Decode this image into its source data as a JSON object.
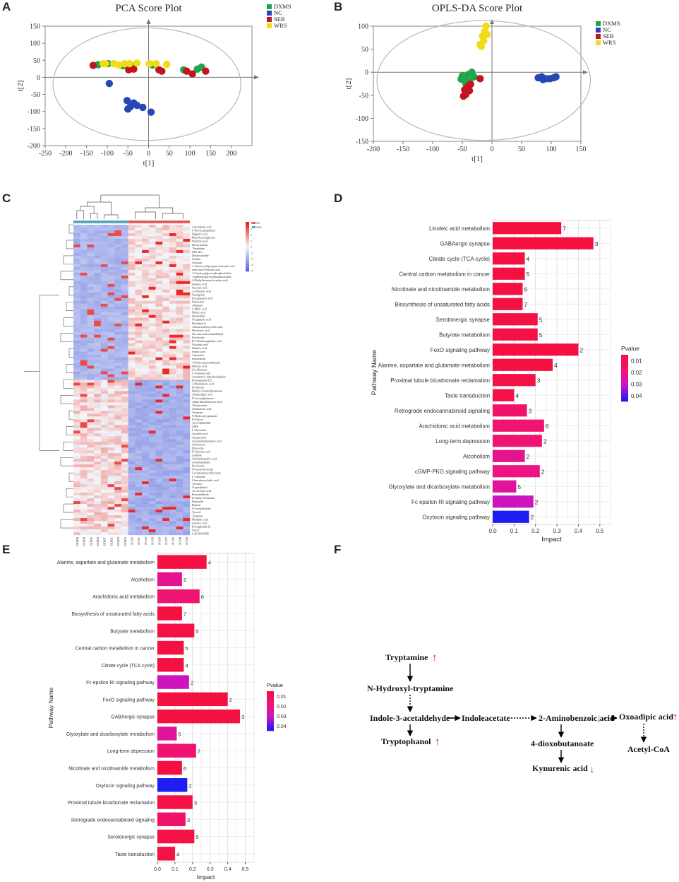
{
  "panels": {
    "a": "A",
    "b": "B",
    "c": "C",
    "d": "D",
    "e": "E",
    "f": "F"
  },
  "colors": {
    "DXMS": "#1fa64a",
    "NC": "#2747b5",
    "SEB": "#c4141b",
    "WRS": "#f2dc17"
  },
  "chart_data": [
    {
      "id": "pca",
      "type": "scatter",
      "title": "PCA Score Plot",
      "xlabel": "t[1]",
      "ylabel": "t[2]",
      "xlim": [
        -250,
        250
      ],
      "ylim": [
        -200,
        150
      ],
      "xticks": [
        -250,
        -200,
        -150,
        -100,
        -50,
        0,
        50,
        100,
        150,
        200
      ],
      "yticks": [
        -200,
        -150,
        -100,
        -50,
        0,
        50,
        100,
        150
      ],
      "ellipse": {
        "cx": -4,
        "cy": -20,
        "rx": 227,
        "ry": 165
      },
      "legend": [
        "DXMS",
        "NC",
        "SEB",
        "WRS"
      ],
      "series": [
        {
          "name": "DXMS",
          "points": [
            [
              -122,
              37
            ],
            [
              -98,
              40
            ],
            [
              -62,
              34
            ],
            [
              -38,
              34
            ],
            [
              10,
              36
            ],
            [
              85,
              22
            ],
            [
              118,
              24
            ],
            [
              128,
              30
            ]
          ]
        },
        {
          "name": "NC",
          "points": [
            [
              -95,
              -18
            ],
            [
              -52,
              -68
            ],
            [
              -44,
              -86
            ],
            [
              -36,
              -75
            ],
            [
              -28,
              -82
            ],
            [
              -14,
              -88
            ],
            [
              6,
              -102
            ],
            [
              -50,
              -93
            ]
          ]
        },
        {
          "name": "SEB",
          "points": [
            [
              -134,
              35
            ],
            [
              -48,
              22
            ],
            [
              -36,
              24
            ],
            [
              25,
              22
            ],
            [
              32,
              18
            ],
            [
              92,
              18
            ],
            [
              106,
              10
            ],
            [
              138,
              18
            ]
          ]
        },
        {
          "name": "WRS",
          "points": [
            [
              -110,
              40
            ],
            [
              -104,
              40
            ],
            [
              -84,
              40
            ],
            [
              -72,
              36
            ],
            [
              -58,
              40
            ],
            [
              -46,
              40
            ],
            [
              -28,
              42
            ],
            [
              2,
              40
            ],
            [
              18,
              40
            ],
            [
              44,
              38
            ]
          ]
        }
      ]
    },
    {
      "id": "oplsda",
      "type": "scatter",
      "title": "OPLS-DA Score Plot",
      "xlabel": "t[1]",
      "ylabel": "t[2]",
      "xlim": [
        -200,
        150
      ],
      "ylim": [
        -150,
        100
      ],
      "xticks": [
        -200,
        -150,
        -100,
        -50,
        0,
        50,
        100,
        150
      ],
      "yticks": [
        -150,
        -100,
        -50,
        0,
        50,
        100
      ],
      "ellipse": {
        "cx": -14,
        "cy": -18,
        "rx": 180,
        "ry": 130
      },
      "legend": [
        "DXMS",
        "NC",
        "SEB",
        "WRS"
      ],
      "series": [
        {
          "name": "DXMS",
          "points": [
            [
              -50,
              -8
            ],
            [
              -46,
              -18
            ],
            [
              -40,
              -5
            ],
            [
              -34,
              0
            ],
            [
              -30,
              -10
            ],
            [
              -44,
              -25
            ],
            [
              -52,
              -15
            ],
            [
              -38,
              -20
            ]
          ]
        },
        {
          "name": "NC",
          "points": [
            [
              78,
              -12
            ],
            [
              86,
              -16
            ],
            [
              92,
              -14
            ],
            [
              98,
              -14
            ],
            [
              104,
              -12
            ],
            [
              108,
              -10
            ],
            [
              84,
              -10
            ]
          ]
        },
        {
          "name": "SEB",
          "points": [
            [
              -46,
              -38
            ],
            [
              -40,
              -30
            ],
            [
              -36,
              -26
            ],
            [
              -44,
              -48
            ],
            [
              -48,
              -52
            ],
            [
              -38,
              -40
            ],
            [
              -20,
              -14
            ]
          ]
        },
        {
          "name": "WRS",
          "points": [
            [
              -10,
              100
            ],
            [
              -12,
              88
            ],
            [
              -8,
              82
            ],
            [
              -16,
              78
            ],
            [
              -14,
              68
            ],
            [
              -20,
              60
            ],
            [
              -18,
              56
            ]
          ]
        }
      ]
    },
    {
      "id": "heatmap",
      "type": "heatmap",
      "legend": [
        "NC",
        "SEB"
      ],
      "colorbar_ticks": [
        "4",
        "3",
        "2",
        "1",
        "0",
        "-1",
        "-2",
        "-3",
        "-4"
      ],
      "samples": [
        "SEB08",
        "SEB04",
        "SEB06",
        "SEB05",
        "SEB07",
        "SEB01",
        "SEB02",
        "SEB03",
        "NC02",
        "NC01",
        "NC03",
        "NC05",
        "NC04",
        "NC07",
        "NC06",
        "NC08",
        "NC09"
      ],
      "row_labels_top": [
        "Arachidonic acid",
        "S-Hexyl-glutathione",
        "Hippuric acid",
        "Phenylacetylglycine",
        "Shikimic acid",
        "Deoxyinosine",
        "Thymidine",
        "EPA (d5)",
        "Deoxycytidine",
        "Uridine",
        "Cytosine",
        "1-Aminocyclopropanecarboxylic acid",
        "trans-trans-Muconic acid",
        "1-Linoleoylglycerophosphocholine",
        "1-palmitoylglycerophosphocholine",
        "2-Methylbutanoylcarnitine acid",
        "Gentisic acid"
      ],
      "row_labels_mid": [
        "Succinic acid",
        "2,4-Dienoic acid",
        "Naringenin",
        "Pyroglutamic acid",
        "Enterodiol",
        "Allantoin",
        "L-Malic acid",
        "Maleic acid",
        "Spermidine",
        "Oxoglutaric acid",
        "Biochanin A",
        "Tauroursodeoxycholic acid",
        "Mevalonic acid",
        "Succinic acid semialdehyde",
        "Pyridoxine",
        "D-2-Hydroxyglutaric acid",
        "Nicotinic acid",
        "Palmitic acid",
        "Stearic acid",
        "Adenosine",
        "Ketoleucine",
        "4-Hydroxybenzaldehyde",
        "Malonic acid",
        "(S)-Allantoin",
        "L-Glutamic acid",
        "Asymmetric dimethylarginine",
        "Prostaglandin D2",
        "3-Phenyllactic acid",
        "D-Glucose"
      ],
      "row_labels_bottom": [
        "Methyl-2-methylbutanoate",
        "Aminoadipic acid",
        "N-Acetylglutamate",
        "Alpha-dimethylacetic acid",
        "Theobromine",
        "Xanthurenic acid",
        "Genistein",
        "N-Hydroxytryptamine",
        "D-Xylose",
        "12,13-DiHOME",
        "GMP",
        "L-Threonine",
        "Ascorbic acid",
        "Campesterol",
        "4-Guanidinobutanoic acid",
        "Cholesterol",
        "Putrescine",
        "D-Glucaric acid",
        "Caffeine",
        "Vanillylmandelic acid",
        "Acetaminophen",
        "Pyridoxine",
        "N-Acetylserotonin",
        "Cyclopropanecarboxylate",
        "L-Carnitine",
        "Chenodeoxycholic acid",
        "Tyrosine",
        "Tryptophanol",
        "cis-Aconitic acid",
        "Pyruvaldehyde",
        "D-Alanyl-D-alanine",
        "Piperidine",
        "Betaine",
        "N-Acetylleucine",
        "Tyrosol",
        "Tyramine",
        "Mandelic acid",
        "Linoleic acid",
        "Prostaglandin I2",
        "Uracil",
        "9,10-DiHOME"
      ]
    },
    {
      "id": "pathway_d",
      "type": "bar",
      "xlabel": "Impact",
      "ylabel": "Pathway Name",
      "legend_title": "Pvalue",
      "legend_ticks": [
        "0.01",
        "0.02",
        "0.03",
        "0.04"
      ],
      "xlim": [
        0,
        0.55
      ],
      "xticks": [
        "0.0",
        "0.1",
        "0.2",
        "0.3",
        "0.4",
        "0.5"
      ],
      "categories": [
        "Linoleic acid metabolism",
        "GABAergic synapse",
        "Citrate cycle (TCA cycle)",
        "Central carbon metabolism in cancer",
        "Nicotinate and nicotinamide metabolism",
        "Biosynthesis of unsaturated fatty acids",
        "Serotonergic synapse",
        "Butyrate metabolism",
        "FoxO signaling pathway",
        "Alanine, aspartate and glutamate metabolism",
        "Proximal tubule bicarbonate reclamation",
        "Taste transduction",
        "Retrograde endocannabinoid signaling",
        "Arachidonic acid metabolism",
        "Long-term depression",
        "Alcoholism",
        "cGMP-PKG signaling pathway",
        "Glyoxylate and dicarboxylate metabolism",
        "Fc epsilon RI signaling pathway",
        "Oxytocin signaling pathway"
      ],
      "values": [
        0.32,
        0.47,
        0.15,
        0.15,
        0.14,
        0.14,
        0.21,
        0.21,
        0.4,
        0.28,
        0.2,
        0.1,
        0.16,
        0.24,
        0.23,
        0.15,
        0.22,
        0.11,
        0.19,
        0.17
      ],
      "counts": [
        "7",
        "3",
        "4",
        "5",
        "6",
        "7",
        "5",
        "5",
        "2",
        "4",
        "3",
        "4",
        "3",
        "6",
        "2",
        "2",
        "2",
        "5",
        "2",
        "2"
      ],
      "pvalues": [
        0.005,
        0.006,
        0.006,
        0.006,
        0.006,
        0.006,
        0.007,
        0.007,
        0.006,
        0.006,
        0.007,
        0.007,
        0.015,
        0.017,
        0.017,
        0.022,
        0.02,
        0.024,
        0.03,
        0.045
      ]
    },
    {
      "id": "pathway_e",
      "type": "bar",
      "xlabel": "Impact",
      "ylabel": "Pathway Name",
      "legend_title": "Pvalue",
      "legend_ticks": [
        "0.01",
        "0.02",
        "0.03",
        "0.04"
      ],
      "xlim": [
        0,
        0.55
      ],
      "xticks": [
        "0.0",
        "0.1",
        "0.2",
        "0.3",
        "0.4",
        "0.5"
      ],
      "categories": [
        "Alanine, aspartate and glutamate metabolism",
        "Alcoholism",
        "Arachidonic acid metabolism",
        "Biosynthesis of unsaturated fatty acids",
        "Butyrate metabolism",
        "Central carbon metabolism in cancer",
        "Citrate cycle (TCA cycle)",
        "Fc epsilon RI signaling pathway",
        "FoxO signaling pathway",
        "GABAergic synapse",
        "Glyoxylate and dicarboxylate metabolism",
        "Long-term depression",
        "Nicotinate and nicotinamide metabolism",
        "Oxytocin signaling pathway",
        "Proximal tubule bicarbonate reclamation",
        "Retrograde endocannabinoid signaling",
        "Serotonergic synapse",
        "Taste transduction"
      ],
      "values": [
        0.28,
        0.14,
        0.24,
        0.14,
        0.21,
        0.15,
        0.15,
        0.18,
        0.4,
        0.47,
        0.11,
        0.22,
        0.14,
        0.17,
        0.2,
        0.16,
        0.21,
        0.1
      ],
      "counts": [
        "4",
        "2",
        "6",
        "7",
        "5",
        "5",
        "4",
        "2",
        "2",
        "3",
        "5",
        "2",
        "6",
        "2",
        "3",
        "3",
        "5",
        "4"
      ],
      "pvalues": [
        0.006,
        0.022,
        0.017,
        0.006,
        0.007,
        0.006,
        0.006,
        0.03,
        0.006,
        0.006,
        0.024,
        0.017,
        0.006,
        0.045,
        0.007,
        0.015,
        0.007,
        0.007
      ]
    }
  ],
  "pathway_f": {
    "nodes": {
      "tryptamine": "Tryptamine",
      "n_hydroxy": "N-Hydroxyl-tryptamine",
      "indole3": "Indole-3-acetaldehyde",
      "indoleacetate": "Indoleacetate",
      "aminobenzoic": "2-Aminobenzoic acid",
      "oxoadipic": "Oxoadipic acid",
      "tryptophanol": "Tryptophanol",
      "dioxobutanoate": "4-dioxobutanoate",
      "acetylcoa": "Acetyl-CoA",
      "kynurenic": "Kynurenic acid"
    },
    "arrows": {
      "up": "↑",
      "down": "↓"
    }
  }
}
